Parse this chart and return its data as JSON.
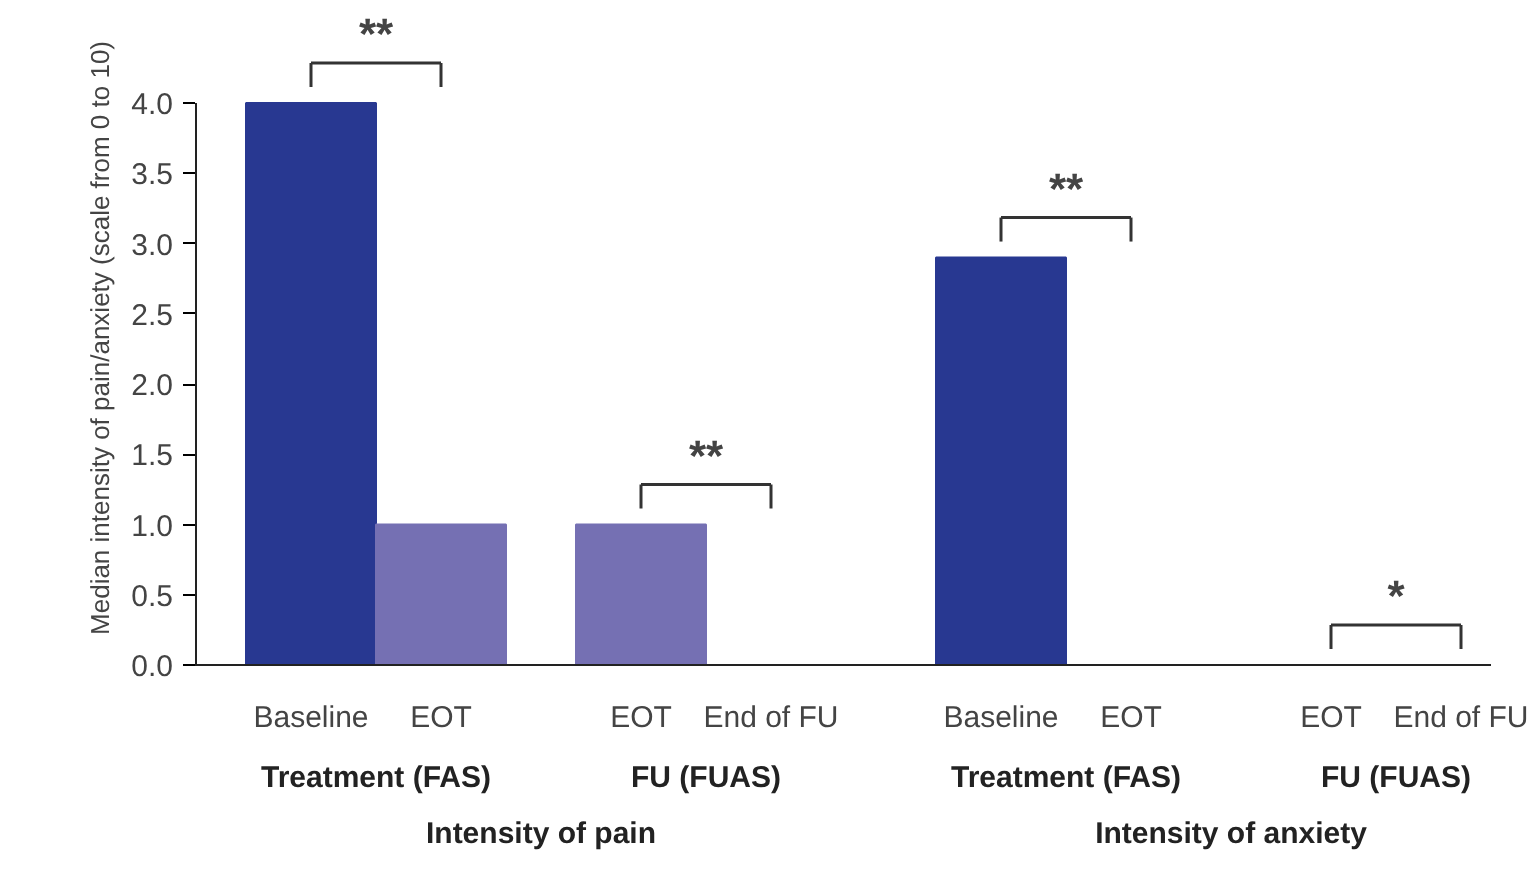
{
  "chart_data": {
    "type": "bar",
    "ylabel": "Median intensity of pain/anxiety (scale from 0 to 10)",
    "categories": [
      "Baseline",
      "EOT",
      "EOT",
      "End of FU",
      "Baseline",
      "EOT",
      "EOT",
      "End of FU"
    ],
    "values": [
      4.0,
      1.0,
      1.0,
      0,
      2.9,
      0,
      0,
      0
    ],
    "colors": [
      "#283891",
      "#7570b3",
      "#7570b3",
      "#7570b3",
      "#283891",
      "#7570b3",
      "#7570b3",
      "#7570b3"
    ],
    "ylim": [
      0,
      4.0
    ],
    "yticks": [
      {
        "value": 0,
        "label": "0.0"
      },
      {
        "value": 0.5,
        "label": "0.5"
      },
      {
        "value": 1,
        "label": "1.0"
      },
      {
        "value": 1.5,
        "label": "1.5"
      },
      {
        "value": 2,
        "label": "2.0"
      },
      {
        "value": 2.5,
        "label": "2.5"
      },
      {
        "value": 3,
        "label": "3.0"
      },
      {
        "value": 3.5,
        "label": "3.5"
      },
      {
        "value": 4,
        "label": "4.0"
      }
    ],
    "annotations": [
      "**",
      "**",
      "**",
      "*",
      "Treatment (FAS)",
      "FU (FUAS)",
      "Treatment (FAS)",
      "FU (FUAS)",
      "Intensity of pain",
      "Intensity of anxiety"
    ]
  }
}
